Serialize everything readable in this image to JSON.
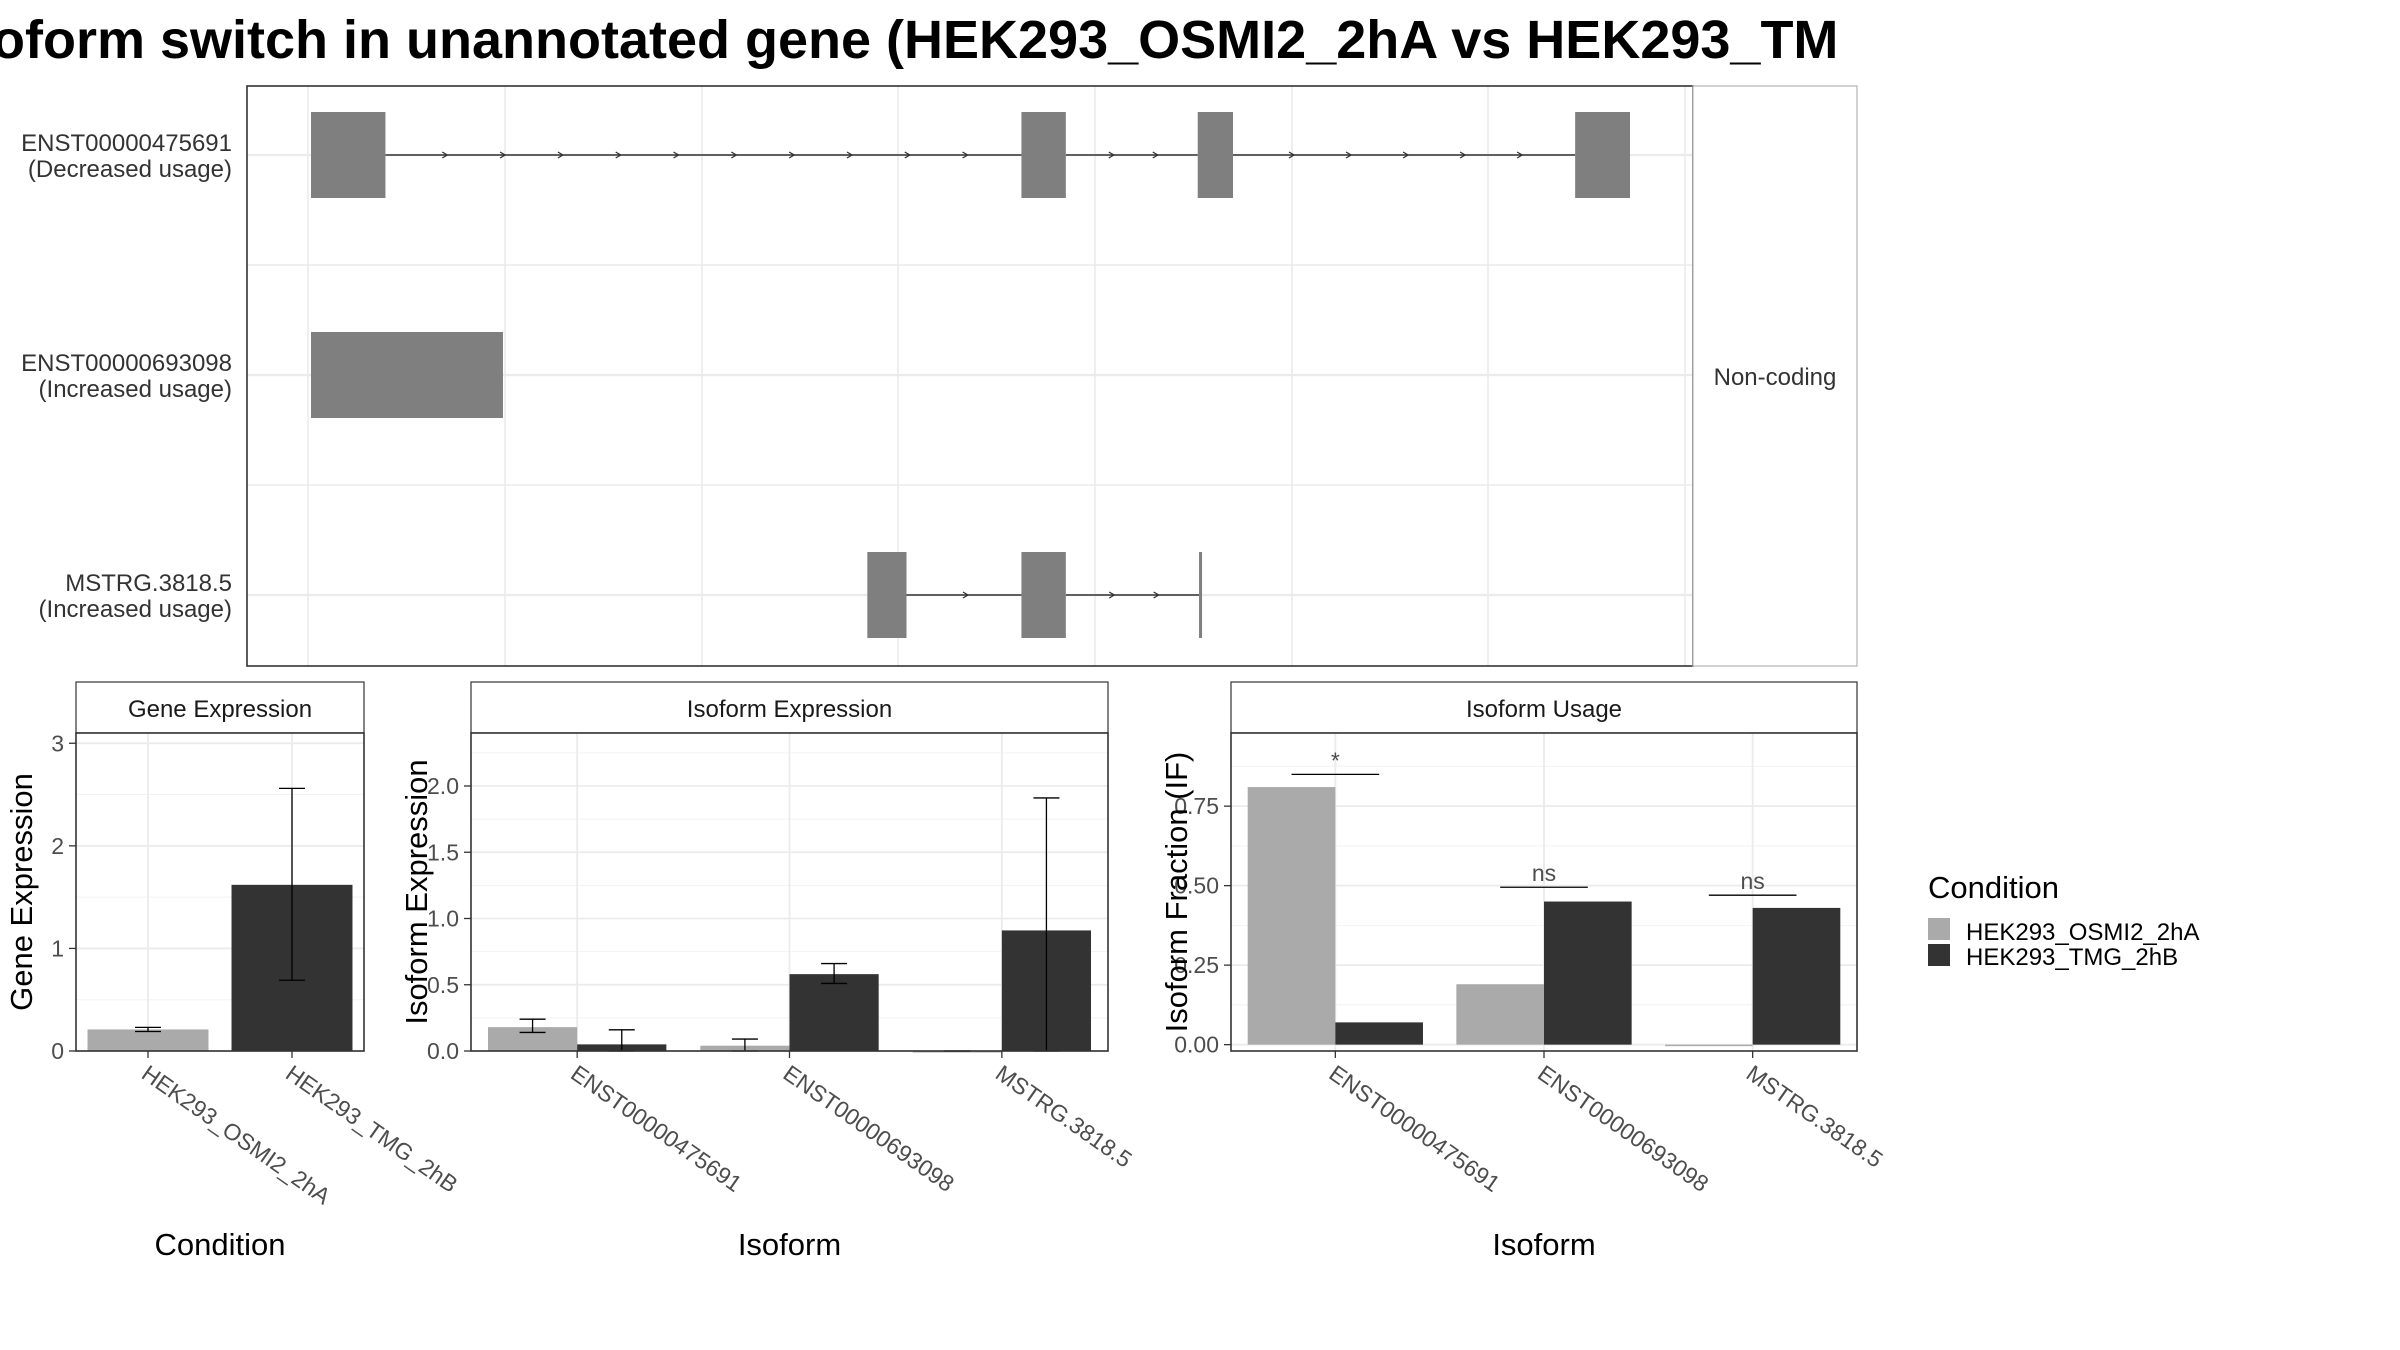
{
  "title": "oform switch in unannotated gene (HEK293_OSMI2_2hA vs HEK293_TM",
  "colors": {
    "cond_a": "#aaaaaa",
    "cond_b": "#333333",
    "exon": "#7f7f7f"
  },
  "transcripts": {
    "strip_label": "Non-coding",
    "items": [
      {
        "name": "ENST00000475691",
        "usage": "(Decreased usage)",
        "exons": [
          [
            0.0,
            0.057
          ],
          [
            0.544,
            0.578
          ],
          [
            0.679,
            0.706
          ],
          [
            0.968,
            1.01
          ]
        ]
      },
      {
        "name": "ENST00000693098",
        "usage": "(Increased usage)",
        "exons": [
          [
            0.0,
            0.147
          ]
        ]
      },
      {
        "name": "MSTRG.3818.5",
        "usage": "(Increased usage)",
        "exons": [
          [
            0.426,
            0.456
          ],
          [
            0.544,
            0.578
          ],
          [
            0.68,
            0.682
          ]
        ]
      }
    ]
  },
  "legend": {
    "title": "Condition",
    "items": [
      "HEK293_OSMI2_2hA",
      "HEK293_TMG_2hB"
    ]
  },
  "chart_data": [
    {
      "type": "bar",
      "title": "Gene Expression",
      "xlabel": "Condition",
      "ylabel": "Gene Expression",
      "ylim": [
        0,
        3.1
      ],
      "yticks": [
        "0",
        "1",
        "2",
        "3"
      ],
      "categories": [
        "HEK293_OSMI2_2hA",
        "HEK293_TMG_2hB"
      ],
      "bars": [
        {
          "category": "HEK293_OSMI2_2hA",
          "condition": "HEK293_OSMI2_2hA",
          "value": 0.21,
          "err": [
            0.19,
            0.23
          ]
        },
        {
          "category": "HEK293_TMG_2hB",
          "condition": "HEK293_TMG_2hB",
          "value": 1.62,
          "err": [
            0.69,
            2.56
          ]
        }
      ]
    },
    {
      "type": "bar",
      "title": "Isoform Expression",
      "xlabel": "Isoform",
      "ylabel": "Isoform Expression",
      "ylim": [
        0,
        2.4
      ],
      "yticks": [
        "0.0",
        "0.5",
        "1.0",
        "1.5",
        "2.0"
      ],
      "categories": [
        "ENST00000475691",
        "ENST00000693098",
        "MSTRG.3818.5"
      ],
      "series": [
        {
          "name": "HEK293_OSMI2_2hA",
          "values": [
            0.18,
            0.04,
            0.0
          ],
          "err": [
            [
              0.14,
              0.24
            ],
            [
              0.0,
              0.09
            ],
            [
              0.0,
              0.0
            ]
          ]
        },
        {
          "name": "HEK293_TMG_2hB",
          "values": [
            0.05,
            0.58,
            0.91
          ],
          "err": [
            [
              0.0,
              0.16
            ],
            [
              0.51,
              0.66
            ],
            [
              0.0,
              1.91
            ]
          ]
        }
      ]
    },
    {
      "type": "bar",
      "title": "Isoform Usage",
      "xlabel": "Isoform",
      "ylabel": "Isoform Fraction (IF)",
      "ylim": [
        -0.02,
        0.98
      ],
      "yticks": [
        "0.00",
        "0.25",
        "0.50",
        "0.75"
      ],
      "categories": [
        "ENST00000475691",
        "ENST00000693098",
        "MSTRG.3818.5"
      ],
      "series": [
        {
          "name": "HEK293_OSMI2_2hA",
          "values": [
            0.81,
            0.19,
            0.0
          ]
        },
        {
          "name": "HEK293_TMG_2hB",
          "values": [
            0.07,
            0.45,
            0.43
          ]
        }
      ],
      "significance": [
        {
          "category": "ENST00000475691",
          "label": "*",
          "y": 0.85
        },
        {
          "category": "ENST00000693098",
          "label": "ns",
          "y": 0.495
        },
        {
          "category": "MSTRG.3818.5",
          "label": "ns",
          "y": 0.47
        }
      ]
    }
  ]
}
